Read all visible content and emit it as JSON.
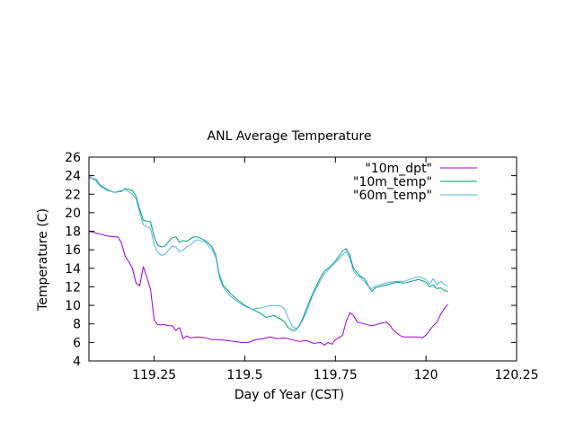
{
  "chart_data": {
    "type": "line",
    "title": "ANL Average Temperature",
    "xlabel": "Day of Year (CST)",
    "ylabel": "Temperature  (C)",
    "xlim": [
      119.07,
      120.25
    ],
    "ylim": [
      4,
      26
    ],
    "xticks": [
      119.25,
      119.5,
      119.75,
      120,
      120.25
    ],
    "xtick_labels": [
      "119.25",
      "119.5",
      "119.75",
      "120",
      "120.25"
    ],
    "yticks": [
      4,
      6,
      8,
      10,
      12,
      14,
      16,
      18,
      20,
      22,
      24,
      26
    ],
    "ytick_labels": [
      "4",
      "6",
      "8",
      "10",
      "12",
      "14",
      "16",
      "18",
      "20",
      "22",
      "24",
      "26"
    ],
    "grid": false,
    "legend_position": "top-right",
    "series": [
      {
        "name": "\"10m_dpt\"",
        "color": "#9400d3",
        "points": [
          [
            119.07,
            18.0
          ],
          [
            119.09,
            17.8
          ],
          [
            119.11,
            17.6
          ],
          [
            119.12,
            17.5
          ],
          [
            119.14,
            17.4
          ],
          [
            119.15,
            17.4
          ],
          [
            119.16,
            16.7
          ],
          [
            119.17,
            15.3
          ],
          [
            119.18,
            14.7
          ],
          [
            119.19,
            14.0
          ],
          [
            119.2,
            12.4
          ],
          [
            119.21,
            12.1
          ],
          [
            119.22,
            14.2
          ],
          [
            119.23,
            13.0
          ],
          [
            119.24,
            11.7
          ],
          [
            119.25,
            8.4
          ],
          [
            119.26,
            7.9
          ],
          [
            119.27,
            7.9
          ],
          [
            119.28,
            7.9
          ],
          [
            119.29,
            7.8
          ],
          [
            119.3,
            7.8
          ],
          [
            119.31,
            7.3
          ],
          [
            119.32,
            7.6
          ],
          [
            119.33,
            6.4
          ],
          [
            119.34,
            6.7
          ],
          [
            119.35,
            6.5
          ],
          [
            119.37,
            6.6
          ],
          [
            119.39,
            6.5
          ],
          [
            119.41,
            6.3
          ],
          [
            119.43,
            6.3
          ],
          [
            119.45,
            6.2
          ],
          [
            119.47,
            6.1
          ],
          [
            119.49,
            6.0
          ],
          [
            119.51,
            6.0
          ],
          [
            119.53,
            6.3
          ],
          [
            119.55,
            6.4
          ],
          [
            119.57,
            6.6
          ],
          [
            119.59,
            6.4
          ],
          [
            119.61,
            6.5
          ],
          [
            119.63,
            6.3
          ],
          [
            119.65,
            6.1
          ],
          [
            119.67,
            6.2
          ],
          [
            119.69,
            5.9
          ],
          [
            119.71,
            6.0
          ],
          [
            119.72,
            5.7
          ],
          [
            119.73,
            6.0
          ],
          [
            119.74,
            5.8
          ],
          [
            119.75,
            6.3
          ],
          [
            119.76,
            6.5
          ],
          [
            119.77,
            6.8
          ],
          [
            119.78,
            8.3
          ],
          [
            119.79,
            9.2
          ],
          [
            119.8,
            8.9
          ],
          [
            119.81,
            8.2
          ],
          [
            119.82,
            8.1
          ],
          [
            119.83,
            8.0
          ],
          [
            119.84,
            7.9
          ],
          [
            119.85,
            7.8
          ],
          [
            119.86,
            7.9
          ],
          [
            119.87,
            8.0
          ],
          [
            119.88,
            8.1
          ],
          [
            119.89,
            8.2
          ],
          [
            119.9,
            7.9
          ],
          [
            119.91,
            7.3
          ],
          [
            119.92,
            7.0
          ],
          [
            119.93,
            6.7
          ],
          [
            119.94,
            6.6
          ],
          [
            119.96,
            6.6
          ],
          [
            119.98,
            6.6
          ],
          [
            119.99,
            6.5
          ],
          [
            120.0,
            6.8
          ],
          [
            120.01,
            7.3
          ],
          [
            120.02,
            7.8
          ],
          [
            120.03,
            8.2
          ],
          [
            120.04,
            9.0
          ],
          [
            120.05,
            9.6
          ],
          [
            120.06,
            10.1
          ]
        ]
      },
      {
        "name": "\"10m_temp\"",
        "color": "#009e73",
        "points": [
          [
            119.07,
            23.8
          ],
          [
            119.09,
            23.6
          ],
          [
            119.1,
            23.0
          ],
          [
            119.12,
            22.5
          ],
          [
            119.14,
            22.2
          ],
          [
            119.16,
            22.3
          ],
          [
            119.17,
            22.6
          ],
          [
            119.19,
            22.4
          ],
          [
            119.2,
            21.8
          ],
          [
            119.21,
            20.4
          ],
          [
            119.22,
            19.2
          ],
          [
            119.23,
            19.1
          ],
          [
            119.24,
            19.0
          ],
          [
            119.25,
            17.4
          ],
          [
            119.26,
            16.5
          ],
          [
            119.27,
            16.3
          ],
          [
            119.28,
            16.4
          ],
          [
            119.29,
            16.9
          ],
          [
            119.3,
            17.3
          ],
          [
            119.31,
            17.4
          ],
          [
            119.32,
            16.8
          ],
          [
            119.33,
            17.0
          ],
          [
            119.34,
            16.9
          ],
          [
            119.35,
            17.2
          ],
          [
            119.36,
            17.4
          ],
          [
            119.37,
            17.4
          ],
          [
            119.38,
            17.2
          ],
          [
            119.39,
            17.0
          ],
          [
            119.4,
            16.7
          ],
          [
            119.41,
            16.3
          ],
          [
            119.42,
            15.4
          ],
          [
            119.43,
            13.3
          ],
          [
            119.44,
            12.2
          ],
          [
            119.46,
            11.3
          ],
          [
            119.48,
            10.6
          ],
          [
            119.5,
            10.0
          ],
          [
            119.52,
            9.6
          ],
          [
            119.54,
            9.2
          ],
          [
            119.56,
            8.7
          ],
          [
            119.58,
            8.9
          ],
          [
            119.6,
            8.5
          ],
          [
            119.61,
            8.2
          ],
          [
            119.62,
            7.6
          ],
          [
            119.63,
            7.3
          ],
          [
            119.64,
            7.3
          ],
          [
            119.65,
            7.8
          ],
          [
            119.66,
            8.6
          ],
          [
            119.67,
            9.6
          ],
          [
            119.68,
            10.6
          ],
          [
            119.69,
            11.5
          ],
          [
            119.7,
            12.3
          ],
          [
            119.71,
            13.1
          ],
          [
            119.72,
            13.7
          ],
          [
            119.73,
            14.0
          ],
          [
            119.74,
            14.4
          ],
          [
            119.75,
            14.8
          ],
          [
            119.76,
            15.3
          ],
          [
            119.77,
            15.9
          ],
          [
            119.78,
            16.1
          ],
          [
            119.79,
            15.4
          ],
          [
            119.8,
            14.0
          ],
          [
            119.81,
            13.5
          ],
          [
            119.82,
            13.1
          ],
          [
            119.83,
            12.9
          ],
          [
            119.84,
            12.2
          ],
          [
            119.85,
            11.5
          ],
          [
            119.86,
            11.9
          ],
          [
            119.88,
            12.1
          ],
          [
            119.9,
            12.3
          ],
          [
            119.92,
            12.5
          ],
          [
            119.94,
            12.4
          ],
          [
            119.96,
            12.6
          ],
          [
            119.98,
            12.8
          ],
          [
            120.0,
            12.5
          ],
          [
            120.01,
            12.0
          ],
          [
            120.02,
            12.2
          ],
          [
            120.03,
            11.8
          ],
          [
            120.04,
            11.9
          ],
          [
            120.05,
            11.6
          ],
          [
            120.06,
            11.5
          ]
        ]
      },
      {
        "name": "\"60m_temp\"",
        "color": "#56b4e9",
        "points": [
          [
            119.07,
            24.0
          ],
          [
            119.09,
            23.4
          ],
          [
            119.1,
            22.9
          ],
          [
            119.12,
            22.4
          ],
          [
            119.14,
            22.2
          ],
          [
            119.16,
            22.4
          ],
          [
            119.17,
            22.5
          ],
          [
            119.19,
            22.0
          ],
          [
            119.2,
            21.5
          ],
          [
            119.21,
            20.0
          ],
          [
            119.22,
            18.7
          ],
          [
            119.23,
            18.5
          ],
          [
            119.24,
            18.3
          ],
          [
            119.25,
            16.6
          ],
          [
            119.26,
            15.7
          ],
          [
            119.27,
            15.4
          ],
          [
            119.28,
            15.5
          ],
          [
            119.29,
            16.0
          ],
          [
            119.3,
            16.4
          ],
          [
            119.31,
            16.3
          ],
          [
            119.32,
            15.8
          ],
          [
            119.33,
            16.0
          ],
          [
            119.34,
            16.3
          ],
          [
            119.35,
            16.5
          ],
          [
            119.36,
            16.9
          ],
          [
            119.37,
            17.1
          ],
          [
            119.38,
            16.9
          ],
          [
            119.39,
            16.9
          ],
          [
            119.4,
            16.4
          ],
          [
            119.41,
            16.0
          ],
          [
            119.42,
            15.2
          ],
          [
            119.43,
            13.0
          ],
          [
            119.44,
            12.0
          ],
          [
            119.46,
            11.0
          ],
          [
            119.48,
            10.4
          ],
          [
            119.5,
            9.9
          ],
          [
            119.52,
            9.6
          ],
          [
            119.54,
            9.7
          ],
          [
            119.56,
            9.9
          ],
          [
            119.58,
            10.0
          ],
          [
            119.6,
            9.9
          ],
          [
            119.61,
            9.6
          ],
          [
            119.62,
            8.6
          ],
          [
            119.63,
            7.8
          ],
          [
            119.64,
            7.5
          ],
          [
            119.65,
            7.7
          ],
          [
            119.66,
            8.4
          ],
          [
            119.67,
            9.3
          ],
          [
            119.68,
            10.3
          ],
          [
            119.69,
            11.3
          ],
          [
            119.7,
            12.0
          ],
          [
            119.71,
            12.8
          ],
          [
            119.72,
            13.4
          ],
          [
            119.73,
            13.8
          ],
          [
            119.74,
            14.2
          ],
          [
            119.75,
            14.6
          ],
          [
            119.76,
            15.0
          ],
          [
            119.77,
            15.5
          ],
          [
            119.78,
            15.8
          ],
          [
            119.79,
            15.1
          ],
          [
            119.8,
            13.7
          ],
          [
            119.81,
            13.2
          ],
          [
            119.82,
            13.0
          ],
          [
            119.83,
            12.6
          ],
          [
            119.84,
            12.1
          ],
          [
            119.85,
            11.8
          ],
          [
            119.86,
            12.1
          ],
          [
            119.88,
            12.3
          ],
          [
            119.9,
            12.5
          ],
          [
            119.92,
            12.6
          ],
          [
            119.94,
            12.6
          ],
          [
            119.96,
            12.9
          ],
          [
            119.98,
            13.1
          ],
          [
            120.0,
            12.8
          ],
          [
            120.01,
            12.3
          ],
          [
            120.02,
            12.9
          ],
          [
            120.03,
            12.2
          ],
          [
            120.04,
            12.6
          ],
          [
            120.05,
            12.3
          ],
          [
            120.06,
            12.1
          ]
        ]
      }
    ]
  }
}
